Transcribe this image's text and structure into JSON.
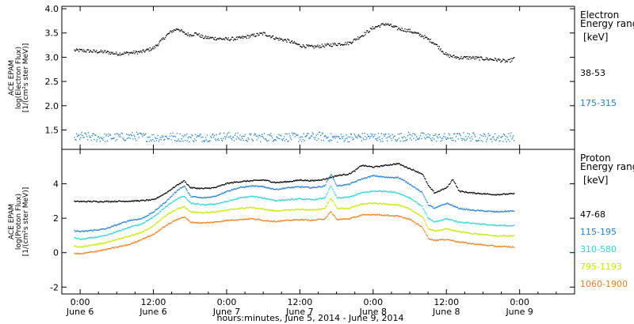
{
  "xaxis": {
    "label": "hours:minutes, June  5, 2014 - June  9, 2014",
    "range_hours": [
      -3,
      81
    ],
    "ticks": [
      {
        "hours": 0,
        "time": "0:00",
        "day": "June 6"
      },
      {
        "hours": 12,
        "time": "12:00",
        "day": "June 6"
      },
      {
        "hours": 24,
        "time": "0:00",
        "day": "June 7"
      },
      {
        "hours": 36,
        "time": "12:00",
        "day": "June 7"
      },
      {
        "hours": 48,
        "time": "0:00",
        "day": "June 8"
      },
      {
        "hours": 60,
        "time": "12:00",
        "day": "June 8"
      },
      {
        "hours": 72,
        "time": "0:00",
        "day": "June 9"
      }
    ]
  },
  "chart_data": [
    {
      "type": "scatter",
      "ylabel": [
        "ACE EPAM",
        "log(Electron Flux)",
        "[1/(cm²s ster MeV)]"
      ],
      "ylim": [
        1.1,
        4.05
      ],
      "yticks": [
        "1.5",
        "2.0",
        "2.5",
        "3.0",
        "3.5",
        "4.0"
      ],
      "legend": {
        "title": [
          "Electron",
          "Energy ranges"
        ],
        "unit": "[keV]"
      },
      "series": [
        {
          "name": "38-53",
          "color": "#000000",
          "x": [
            -1,
            0,
            2,
            4,
            6,
            8,
            10,
            12,
            13,
            14,
            15,
            16,
            17,
            18,
            19,
            20,
            22,
            24,
            26,
            28,
            30,
            32,
            34,
            36,
            38,
            40,
            42,
            44,
            46,
            48,
            50,
            52,
            54,
            56,
            58,
            60,
            62,
            64,
            66,
            68,
            70,
            71
          ],
          "y": [
            3.15,
            3.15,
            3.13,
            3.12,
            3.08,
            3.1,
            3.12,
            3.2,
            3.32,
            3.45,
            3.55,
            3.6,
            3.5,
            3.47,
            3.5,
            3.42,
            3.4,
            3.38,
            3.4,
            3.45,
            3.5,
            3.4,
            3.35,
            3.25,
            3.22,
            3.25,
            3.28,
            3.3,
            3.45,
            3.62,
            3.7,
            3.6,
            3.55,
            3.45,
            3.3,
            3.05,
            3.0,
            3.0,
            2.98,
            2.96,
            2.92,
            2.98
          ]
        },
        {
          "name": "175-315",
          "color": "#1f7fd4",
          "x": [
            -1,
            0,
            3,
            6,
            9,
            12,
            15,
            18,
            21,
            24,
            27,
            30,
            33,
            36,
            39,
            42,
            45,
            48,
            51,
            54,
            57,
            60,
            63,
            66,
            69,
            71
          ],
          "y": [
            1.33,
            1.38,
            1.35,
            1.36,
            1.38,
            1.35,
            1.37,
            1.35,
            1.36,
            1.38,
            1.35,
            1.36,
            1.37,
            1.35,
            1.38,
            1.34,
            1.36,
            1.37,
            1.35,
            1.38,
            1.36,
            1.35,
            1.37,
            1.36,
            1.35,
            1.37
          ]
        }
      ]
    },
    {
      "type": "scatter",
      "ylabel": [
        "ACE EPAM",
        "log(Proton Flux)",
        "[1/(cm²s ster MeV)]"
      ],
      "ylim": [
        -2.4,
        6.0
      ],
      "yticks": [
        "-2",
        "0",
        "2",
        "4"
      ],
      "legend": {
        "title": [
          "Proton",
          "Energy ranges"
        ],
        "unit": "[keV]"
      },
      "series": [
        {
          "name": "47-68",
          "color": "#000000",
          "x": [
            -1,
            0,
            4,
            8,
            10,
            12,
            14,
            16,
            17,
            18,
            20,
            22,
            24,
            26,
            28,
            30,
            32,
            34,
            36,
            38,
            40,
            42,
            44,
            45,
            46,
            48,
            50,
            52,
            54,
            56,
            57,
            58,
            60,
            61,
            62,
            64,
            68,
            71
          ],
          "y": [
            3.0,
            3.0,
            3.0,
            3.02,
            3.05,
            3.1,
            3.5,
            4.0,
            4.2,
            3.8,
            3.75,
            3.8,
            4.05,
            4.15,
            4.2,
            4.25,
            4.1,
            4.15,
            4.25,
            4.2,
            4.3,
            4.5,
            4.6,
            4.8,
            5.1,
            5.0,
            5.1,
            5.2,
            4.9,
            4.6,
            3.9,
            3.5,
            3.8,
            4.3,
            3.6,
            3.5,
            3.4,
            3.45
          ]
        },
        {
          "name": "115-195",
          "color": "#1f7fd4",
          "x": [
            -1,
            0,
            4,
            8,
            10,
            12,
            14,
            16,
            17,
            18,
            20,
            22,
            24,
            26,
            28,
            30,
            32,
            34,
            36,
            38,
            40,
            41,
            42,
            44,
            46,
            48,
            50,
            52,
            54,
            56,
            57,
            58,
            60,
            62,
            64,
            68,
            71
          ],
          "y": [
            1.3,
            1.25,
            1.4,
            1.9,
            2.0,
            2.4,
            3.0,
            3.7,
            3.9,
            3.3,
            3.2,
            3.3,
            3.6,
            3.8,
            3.9,
            3.85,
            3.7,
            3.8,
            3.85,
            3.8,
            3.9,
            4.6,
            3.9,
            4.0,
            4.3,
            4.5,
            4.4,
            4.4,
            4.0,
            3.5,
            2.8,
            2.6,
            2.9,
            2.6,
            2.5,
            2.4,
            2.45
          ]
        },
        {
          "name": "310-580",
          "color": "#2ed3d8",
          "x": [
            -1,
            0,
            4,
            8,
            10,
            12,
            14,
            16,
            17,
            18,
            20,
            22,
            24,
            26,
            28,
            30,
            32,
            34,
            36,
            38,
            40,
            41,
            42,
            44,
            46,
            48,
            50,
            52,
            54,
            56,
            57,
            58,
            60,
            62,
            64,
            68,
            71
          ],
          "y": [
            0.9,
            0.8,
            1.0,
            1.5,
            1.7,
            2.1,
            2.7,
            3.2,
            3.3,
            2.9,
            2.8,
            2.85,
            3.0,
            3.2,
            3.3,
            3.2,
            3.05,
            3.1,
            3.15,
            3.1,
            3.2,
            3.9,
            3.2,
            3.25,
            3.5,
            3.6,
            3.6,
            3.5,
            3.2,
            2.7,
            2.0,
            1.8,
            2.0,
            1.8,
            1.75,
            1.6,
            1.6
          ]
        },
        {
          "name": "795-1193",
          "color": "#c8e600",
          "x": [
            -1,
            0,
            4,
            8,
            10,
            12,
            14,
            16,
            17,
            18,
            20,
            22,
            24,
            26,
            28,
            30,
            32,
            34,
            36,
            38,
            40,
            41,
            42,
            44,
            46,
            48,
            50,
            52,
            54,
            56,
            57,
            58,
            60,
            62,
            64,
            68,
            71
          ],
          "y": [
            0.4,
            0.35,
            0.6,
            1.0,
            1.2,
            1.6,
            2.2,
            2.6,
            2.7,
            2.4,
            2.35,
            2.4,
            2.5,
            2.6,
            2.65,
            2.55,
            2.45,
            2.5,
            2.55,
            2.5,
            2.6,
            3.2,
            2.6,
            2.6,
            2.85,
            2.9,
            2.85,
            2.8,
            2.55,
            2.1,
            1.4,
            1.3,
            1.4,
            1.25,
            1.15,
            1.0,
            1.0
          ]
        },
        {
          "name": "1060-1900",
          "color": "#f07f1a",
          "x": [
            -1,
            0,
            4,
            8,
            10,
            12,
            14,
            16,
            17,
            18,
            20,
            22,
            24,
            26,
            28,
            30,
            32,
            34,
            36,
            38,
            40,
            41,
            42,
            44,
            46,
            48,
            50,
            52,
            54,
            56,
            57,
            58,
            60,
            62,
            64,
            68,
            71
          ],
          "y": [
            0.0,
            -0.05,
            0.2,
            0.5,
            0.8,
            1.1,
            1.6,
            2.0,
            2.1,
            1.8,
            1.75,
            1.8,
            1.9,
            1.95,
            2.0,
            1.9,
            1.85,
            1.9,
            1.95,
            1.9,
            2.0,
            2.4,
            1.95,
            2.0,
            2.2,
            2.25,
            2.2,
            2.15,
            1.95,
            1.5,
            0.85,
            0.75,
            0.8,
            0.65,
            0.55,
            0.4,
            0.35
          ]
        }
      ]
    }
  ]
}
